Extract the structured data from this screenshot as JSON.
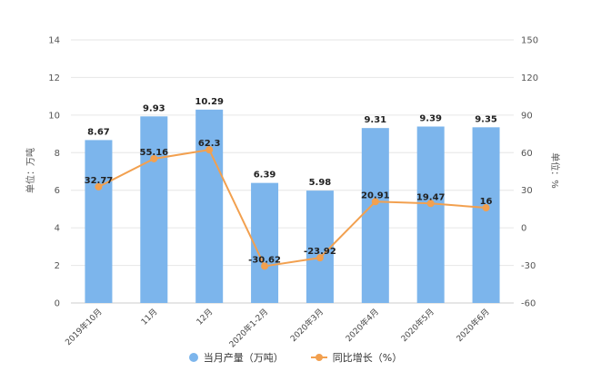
{
  "chart_data": {
    "type": "bar",
    "categories": [
      "2019年10月",
      "11月",
      "12月",
      "2020年1-2月",
      "2020年3月",
      "2020年4月",
      "2020年5月",
      "2020年6月"
    ],
    "series": [
      {
        "name": "当月产量（万吨）",
        "type": "bar",
        "axis": "left",
        "values": [
          8.67,
          9.93,
          10.29,
          6.39,
          5.98,
          9.31,
          9.39,
          9.35
        ],
        "labels": [
          "8.67",
          "9.93",
          "10.29",
          "6.39",
          "5.98",
          "9.31",
          "9.39",
          "9.35"
        ]
      },
      {
        "name": "同比增长（%）",
        "type": "line",
        "axis": "right",
        "values": [
          32.77,
          55.16,
          62.3,
          -30.62,
          -23.92,
          20.91,
          19.47,
          16
        ],
        "labels": [
          "32.77",
          "55.16",
          "62.3",
          "-30.62",
          "-23.92",
          "20.91",
          "19.47",
          "16"
        ]
      }
    ],
    "ylabel": "单位：万吨",
    "y2label": "单位：%",
    "ylim": [
      0,
      14
    ],
    "yticks": [
      "0",
      "2",
      "4",
      "6",
      "8",
      "10",
      "12",
      "14"
    ],
    "y2lim": [
      -60,
      150
    ],
    "y2ticks": [
      "-60",
      "-30",
      "0",
      "30",
      "60",
      "90",
      "120",
      "150"
    ],
    "grid": true,
    "legend_position": "bottom",
    "colors": {
      "bar": "#7cb5ec",
      "line": "#f2a04f",
      "grid": "#e6e6e6"
    }
  }
}
